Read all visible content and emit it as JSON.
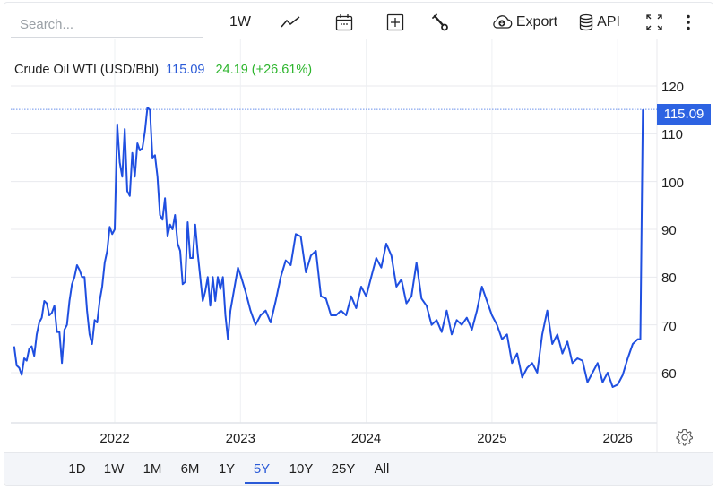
{
  "toolbar": {
    "search_placeholder": "Search...",
    "interval_label": "1W",
    "chart_type_icon": "line-chart-icon",
    "calendar_icon": "calendar-icon",
    "compare_icon": "plus-square-icon",
    "settings_icon": "wrench-icon",
    "export_label": "Export",
    "export_icon": "cloud-download-icon",
    "api_label": "API",
    "api_icon": "database-icon",
    "fullscreen_icon": "expand-icon",
    "more_icon": "vertical-dots-icon"
  },
  "header": {
    "name": "Crude Oil WTI (USD/Bbl)",
    "price": "115.09",
    "change": "24.19 (+26.61%)"
  },
  "price_tag": "115.09",
  "colors": {
    "line": "#1f4fe0",
    "accent": "#2a5ad7",
    "positive": "#2db52d",
    "price_tag_bg": "#2d63e2",
    "grid": "#e8eaee"
  },
  "ranges": {
    "items": [
      "1D",
      "1W",
      "1M",
      "6M",
      "1Y",
      "5Y",
      "10Y",
      "25Y",
      "All"
    ],
    "active": "5Y"
  },
  "chart_data": {
    "type": "line",
    "title": "Crude Oil WTI (USD/Bbl)",
    "xlabel": "",
    "ylabel": "",
    "ylim": [
      50,
      122
    ],
    "yticks": [
      60,
      70,
      80,
      90,
      100,
      110,
      120
    ],
    "xticks": [
      "2022",
      "2023",
      "2024",
      "2025",
      "2026"
    ],
    "grid": true,
    "legend": "none",
    "last_value": 115.09,
    "change": 24.19,
    "change_pct": 26.61,
    "series": [
      {
        "name": "Crude Oil WTI",
        "x": [
          2021.2,
          2021.22,
          2021.24,
          2021.26,
          2021.28,
          2021.3,
          2021.32,
          2021.34,
          2021.36,
          2021.38,
          2021.4,
          2021.42,
          2021.44,
          2021.46,
          2021.48,
          2021.5,
          2021.52,
          2021.54,
          2021.56,
          2021.58,
          2021.6,
          2021.62,
          2021.64,
          2021.66,
          2021.68,
          2021.7,
          2021.72,
          2021.74,
          2021.76,
          2021.78,
          2021.8,
          2021.82,
          2021.84,
          2021.86,
          2021.88,
          2021.9,
          2021.92,
          2021.94,
          2021.96,
          2021.98,
          2022.0,
          2022.02,
          2022.04,
          2022.06,
          2022.08,
          2022.1,
          2022.12,
          2022.14,
          2022.16,
          2022.18,
          2022.2,
          2022.22,
          2022.24,
          2022.26,
          2022.28,
          2022.3,
          2022.32,
          2022.34,
          2022.36,
          2022.38,
          2022.4,
          2022.42,
          2022.44,
          2022.46,
          2022.48,
          2022.5,
          2022.52,
          2022.54,
          2022.56,
          2022.58,
          2022.6,
          2022.62,
          2022.64,
          2022.66,
          2022.68,
          2022.7,
          2022.72,
          2022.74,
          2022.76,
          2022.78,
          2022.8,
          2022.82,
          2022.84,
          2022.86,
          2022.88,
          2022.9,
          2022.92,
          2022.94,
          2022.96,
          2022.98,
          2023.0,
          2023.04,
          2023.08,
          2023.12,
          2023.16,
          2023.2,
          2023.24,
          2023.28,
          2023.32,
          2023.36,
          2023.4,
          2023.44,
          2023.48,
          2023.52,
          2023.56,
          2023.6,
          2023.64,
          2023.68,
          2023.72,
          2023.76,
          2023.8,
          2023.84,
          2023.88,
          2023.92,
          2023.96,
          2024.0,
          2024.04,
          2024.08,
          2024.12,
          2024.16,
          2024.2,
          2024.24,
          2024.28,
          2024.32,
          2024.36,
          2024.4,
          2024.44,
          2024.48,
          2024.52,
          2024.56,
          2024.6,
          2024.64,
          2024.68,
          2024.72,
          2024.76,
          2024.8,
          2024.84,
          2024.88,
          2024.92,
          2024.96,
          2025.0,
          2025.04,
          2025.08,
          2025.12,
          2025.16,
          2025.2,
          2025.24,
          2025.28,
          2025.32,
          2025.36,
          2025.4,
          2025.44,
          2025.48,
          2025.52,
          2025.56,
          2025.6,
          2025.64,
          2025.68,
          2025.72,
          2025.76,
          2025.8,
          2025.84,
          2025.88,
          2025.92,
          2025.96,
          2026.0,
          2026.04,
          2026.08,
          2026.12,
          2026.16,
          2026.18,
          2026.2
        ],
        "values": [
          65.5,
          61.5,
          61,
          59.5,
          63,
          62.5,
          65,
          65.5,
          63.5,
          68,
          70.5,
          71.5,
          75,
          74.5,
          72,
          72.5,
          74,
          68.5,
          68.5,
          62,
          69,
          70,
          75,
          78.5,
          80,
          82.5,
          81.5,
          80,
          80,
          73,
          68,
          66,
          71,
          70.5,
          75,
          78,
          83,
          85.5,
          90.5,
          89,
          90,
          112,
          104,
          101,
          111,
          98,
          97,
          106,
          101,
          108,
          106.5,
          107,
          110.5,
          115.5,
          115,
          105,
          105.5,
          101,
          93,
          92,
          96.5,
          88.5,
          91,
          90,
          93,
          87,
          85.5,
          78.5,
          79,
          91.5,
          84,
          84,
          91,
          85,
          80,
          75,
          77,
          80,
          74,
          80,
          75,
          80,
          77.5,
          80,
          72,
          67,
          73,
          76,
          79,
          82,
          80.5,
          77,
          73,
          70,
          72,
          73,
          70.5,
          75,
          80,
          83.5,
          82.5,
          89,
          88.5,
          81,
          84.5,
          85.5,
          76,
          75.5,
          72,
          72,
          73,
          72,
          76,
          73.5,
          78,
          76,
          80,
          84,
          82,
          87,
          84.5,
          78,
          79.5,
          74.5,
          76,
          83,
          75.5,
          74,
          70,
          71,
          68.5,
          73,
          68,
          71,
          70,
          71.5,
          69,
          73,
          78,
          75,
          72,
          70,
          67,
          68,
          62,
          64,
          59,
          61,
          62,
          60,
          68,
          73,
          66,
          68,
          64,
          66.5,
          62,
          63,
          62.5,
          58,
          60,
          62,
          58,
          60,
          57,
          57.5,
          59.5,
          63,
          66,
          67,
          67,
          115.09
        ]
      }
    ]
  }
}
